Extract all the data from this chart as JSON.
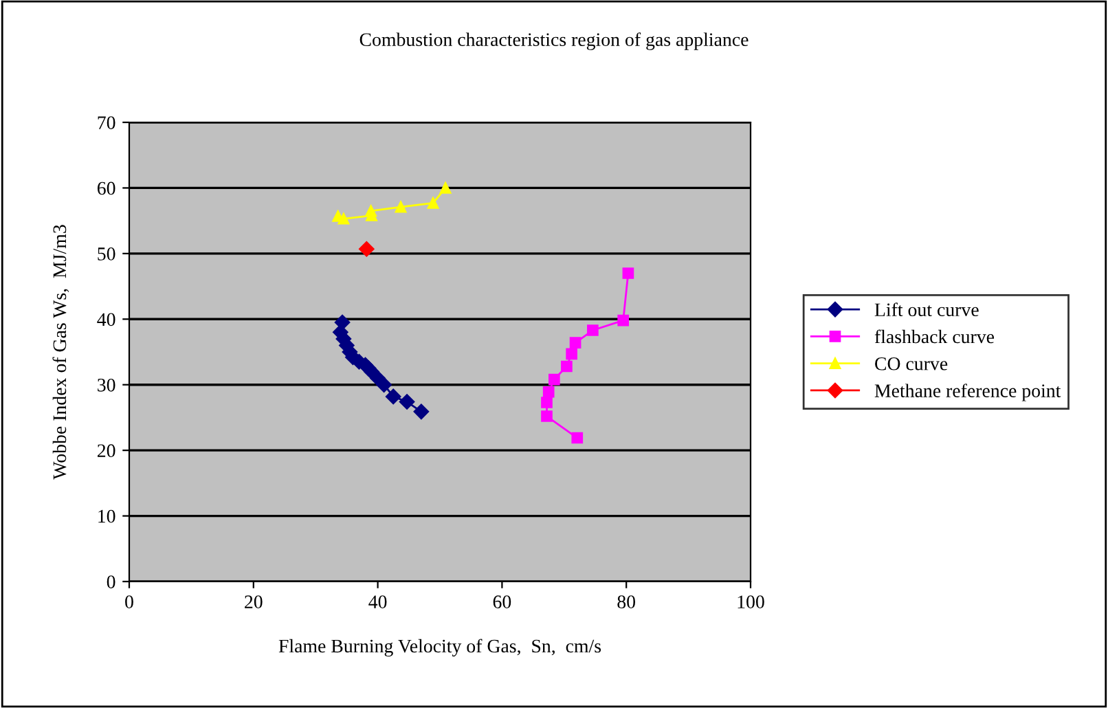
{
  "chart_data": {
    "type": "line",
    "title": "Combustion characteristics region of gas appliance",
    "xlabel": "Flame Burning Velocity of Gas,  Sn,  cm/s",
    "ylabel": "Wobbe Index of Gas Ws,  MJ/m3",
    "xlim": [
      0,
      100
    ],
    "xticks": [
      0,
      20,
      40,
      60,
      80,
      100
    ],
    "ylim": [
      0,
      70
    ],
    "yticks": [
      0,
      10,
      20,
      30,
      40,
      50,
      60,
      70
    ],
    "grid": "y",
    "legend": "right",
    "series": [
      {
        "name": "Lift out curve",
        "color": "#000080",
        "marker": "diamond",
        "x": [
          34.3,
          34.0,
          34.5,
          35.0,
          35.5,
          36.0,
          37.0,
          38.0,
          38.5,
          39.0,
          40.0,
          41.0,
          42.5,
          44.7,
          47.0
        ],
        "values": [
          39.5,
          38.0,
          37.0,
          36.0,
          35.0,
          34.2,
          33.5,
          33.0,
          32.5,
          32.0,
          31.0,
          30.0,
          28.2,
          27.4,
          25.9
        ]
      },
      {
        "name": "flashback curve",
        "color": "#ff00ff",
        "marker": "square",
        "x": [
          80.3,
          79.5,
          74.6,
          71.8,
          71.2,
          70.4,
          68.4,
          67.5,
          67.2,
          67.2,
          72.1
        ],
        "values": [
          47.0,
          39.8,
          38.3,
          36.4,
          34.7,
          32.8,
          30.8,
          28.9,
          27.3,
          25.2,
          21.9
        ]
      },
      {
        "name": "CO curve",
        "color": "#ffff00",
        "marker": "triangle",
        "x": [
          33.6,
          34.5,
          39.0,
          38.9,
          43.7,
          48.9,
          50.9
        ],
        "values": [
          55.7,
          55.3,
          55.8,
          56.5,
          57.1,
          57.7,
          60.0
        ]
      },
      {
        "name": "Methane reference point",
        "color": "#ff0000",
        "marker": "diamond",
        "x": [
          38.2
        ],
        "values": [
          50.7
        ]
      }
    ]
  }
}
